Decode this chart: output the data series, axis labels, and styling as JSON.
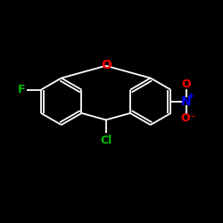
{
  "bg_color": "#000000",
  "line_color": "#ffffff",
  "atom_colors": {
    "O": "#ff0000",
    "F": "#00bb00",
    "Cl": "#00bb00",
    "N": "#0000ff"
  },
  "font_size": 8.5,
  "lw": 1.3
}
